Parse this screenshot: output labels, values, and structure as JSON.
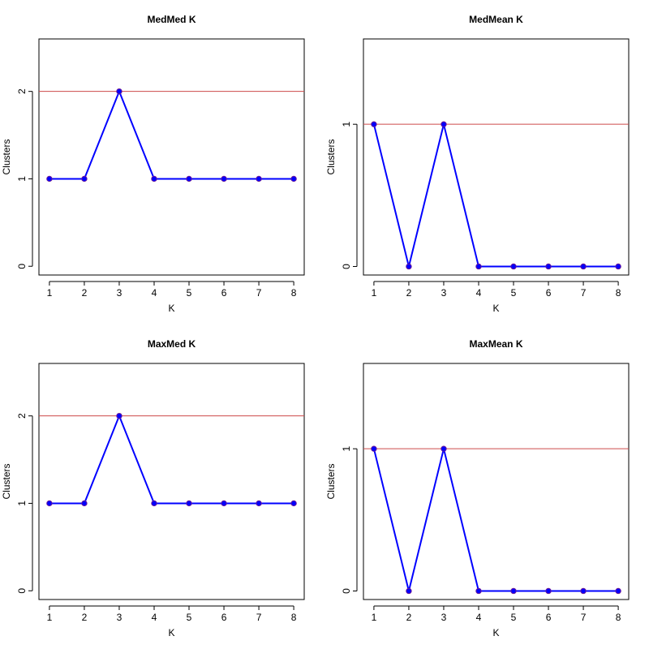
{
  "colors": {
    "series_line": "#0000ff",
    "series_point_fill": "#0000ff",
    "series_point_border": "#6a1a9a",
    "reference_line": "#cd4a4a",
    "axis": "#000000"
  },
  "chart_data": [
    {
      "type": "line",
      "title": "MedMed K",
      "xlabel": "K",
      "ylabel": "Clusters",
      "x": [
        1,
        2,
        3,
        4,
        5,
        6,
        7,
        8
      ],
      "x_ticks": [
        "1",
        "2",
        "3",
        "4",
        "5",
        "6",
        "7",
        "8"
      ],
      "y_ticks": [
        "0",
        "1",
        "2"
      ],
      "xlim": [
        0.7,
        8.3
      ],
      "ylim": [
        -0.1,
        2.6
      ],
      "grid": false,
      "series": [
        {
          "values": [
            1,
            1,
            2,
            1,
            1,
            1,
            1,
            1
          ],
          "marker": "circle"
        }
      ],
      "reference_line": {
        "y": 2
      }
    },
    {
      "type": "line",
      "title": "MedMean K",
      "xlabel": "K",
      "ylabel": "Clusters",
      "x": [
        1,
        2,
        3,
        4,
        5,
        6,
        7,
        8
      ],
      "x_ticks": [
        "1",
        "2",
        "3",
        "4",
        "5",
        "6",
        "7",
        "8"
      ],
      "y_ticks": [
        "0",
        "1"
      ],
      "xlim": [
        0.7,
        8.3
      ],
      "ylim": [
        -0.06,
        1.6
      ],
      "grid": false,
      "series": [
        {
          "values": [
            1,
            0,
            1,
            0,
            0,
            0,
            0,
            0
          ],
          "marker": "circle"
        }
      ],
      "reference_line": {
        "y": 1
      }
    },
    {
      "type": "line",
      "title": "MaxMed K",
      "xlabel": "K",
      "ylabel": "Clusters",
      "x": [
        1,
        2,
        3,
        4,
        5,
        6,
        7,
        8
      ],
      "x_ticks": [
        "1",
        "2",
        "3",
        "4",
        "5",
        "6",
        "7",
        "8"
      ],
      "y_ticks": [
        "0",
        "1",
        "2"
      ],
      "xlim": [
        0.7,
        8.3
      ],
      "ylim": [
        -0.1,
        2.6
      ],
      "grid": false,
      "series": [
        {
          "values": [
            1,
            1,
            2,
            1,
            1,
            1,
            1,
            1
          ],
          "marker": "circle"
        }
      ],
      "reference_line": {
        "y": 2
      }
    },
    {
      "type": "line",
      "title": "MaxMean K",
      "xlabel": "K",
      "ylabel": "Clusters",
      "x": [
        1,
        2,
        3,
        4,
        5,
        6,
        7,
        8
      ],
      "x_ticks": [
        "1",
        "2",
        "3",
        "4",
        "5",
        "6",
        "7",
        "8"
      ],
      "y_ticks": [
        "0",
        "1"
      ],
      "xlim": [
        0.7,
        8.3
      ],
      "ylim": [
        -0.06,
        1.6
      ],
      "grid": false,
      "series": [
        {
          "values": [
            1,
            0,
            1,
            0,
            0,
            0,
            0,
            0
          ],
          "marker": "circle"
        }
      ],
      "reference_line": {
        "y": 1
      }
    }
  ]
}
